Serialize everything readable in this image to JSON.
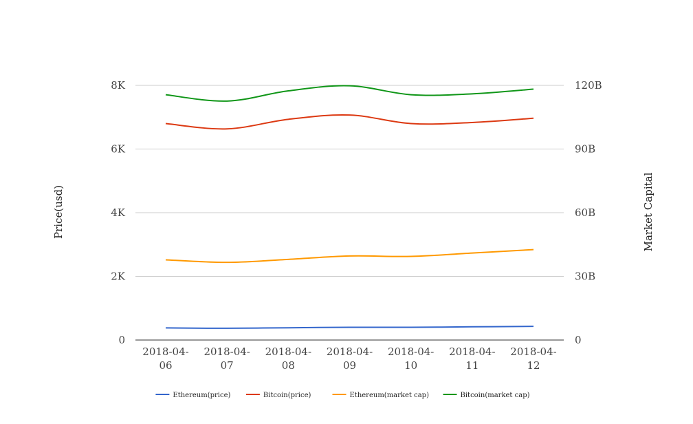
{
  "chart_data": {
    "type": "line",
    "x": [
      "2018-04-06",
      "2018-04-07",
      "2018-04-08",
      "2018-04-09",
      "2018-04-10",
      "2018-04-11",
      "2018-04-12"
    ],
    "x_tick_labels": [
      [
        "2018-04-",
        "06"
      ],
      [
        "2018-04-",
        "07"
      ],
      [
        "2018-04-",
        "08"
      ],
      [
        "2018-04-",
        "09"
      ],
      [
        "2018-04-",
        "10"
      ],
      [
        "2018-04-",
        "11"
      ],
      [
        "2018-04-",
        "12"
      ]
    ],
    "ylabel_left": "Price(usd)",
    "ylabel_right": "Market Capital",
    "y_left_ticks": [
      {
        "value": 0,
        "label": "0"
      },
      {
        "value": 2000,
        "label": "2K"
      },
      {
        "value": 4000,
        "label": "4K"
      },
      {
        "value": 6000,
        "label": "6K"
      },
      {
        "value": 8000,
        "label": "8K"
      }
    ],
    "y_right_ticks": [
      {
        "value": 0,
        "label": "0"
      },
      {
        "value": 30000000000,
        "label": "30B"
      },
      {
        "value": 60000000000,
        "label": "60B"
      },
      {
        "value": 90000000000,
        "label": "90B"
      },
      {
        "value": 120000000000,
        "label": "120B"
      }
    ],
    "y_left_range": [
      0,
      8000
    ],
    "y_right_range": [
      0,
      120000000000
    ],
    "grid": true,
    "legend_position": "bottom",
    "series": [
      {
        "name": "Ethereum(price)",
        "axis": "left",
        "color": "#3366cc",
        "values": [
          380,
          370,
          385,
          400,
          400,
          415,
          430
        ]
      },
      {
        "name": "Bitcoin(price)",
        "axis": "right",
        "color": "#dc3912",
        "values": [
          102000000000,
          99500000000,
          104000000000,
          106000000000,
          102000000000,
          102500000000,
          104500000000
        ]
      },
      {
        "name": "Ethereum(market cap)",
        "axis": "right",
        "color": "#ff9900",
        "values": [
          37800000000,
          36600000000,
          38000000000,
          39600000000,
          39400000000,
          41000000000,
          42600000000
        ]
      },
      {
        "name": "Bitcoin(market cap)",
        "axis": "right",
        "color": "#109618",
        "values": [
          115600000000,
          112600000000,
          117400000000,
          119800000000,
          115600000000,
          116000000000,
          118200000000
        ]
      }
    ]
  }
}
